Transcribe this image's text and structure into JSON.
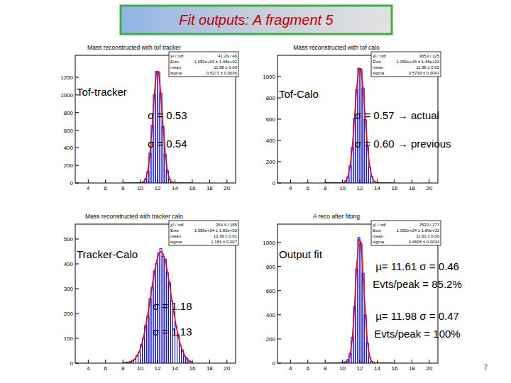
{
  "slide": {
    "title": "Fit outputs: A fragment 5",
    "page": "7"
  },
  "chart_data": [
    {
      "type": "histogram",
      "title": "Mass reconstructed with tof tracker",
      "grid": false,
      "xlim": [
        2.5,
        21
      ],
      "xticks": [
        4,
        6,
        8,
        10,
        12,
        14,
        16,
        18,
        20
      ],
      "ylim": [
        0,
        1450
      ],
      "yticks": [
        0,
        200,
        400,
        600,
        800,
        1000,
        1200
      ],
      "bins": [
        8,
        8.25,
        8.5,
        8.75,
        9,
        9.25,
        9.5,
        9.75,
        10,
        10.25,
        10.5,
        10.75,
        11,
        11.25,
        11.5,
        11.75,
        12,
        12.25,
        12.5,
        12.75,
        13,
        13.25,
        13.5,
        13.75,
        14,
        14.25,
        14.5,
        14.75,
        15,
        15.25,
        15.5,
        15.75,
        16
      ],
      "series": [
        {
          "type": "histogram",
          "color": "#0000ff",
          "values": [
            0,
            0,
            0,
            0,
            0,
            1,
            1,
            3,
            4,
            14,
            48,
            130,
            340,
            655,
            1002,
            1270,
            1258,
            1020,
            641,
            328,
            142,
            41,
            13,
            3,
            1,
            0,
            0,
            0,
            0,
            0,
            0,
            0
          ]
        },
        {
          "type": "line",
          "color": "#ff0000",
          "x": [
            8.125,
            8.375,
            8.625,
            8.875,
            9.125,
            9.375,
            9.625,
            9.875,
            10.125,
            10.375,
            10.625,
            10.875,
            11.125,
            11.375,
            11.625,
            11.875,
            12.125,
            12.375,
            12.625,
            12.875,
            13.125,
            13.375,
            13.625,
            13.875,
            14.125,
            14.375,
            14.625,
            14.875,
            15.125,
            15.375,
            15.625,
            15.875
          ],
          "values": [
            0,
            0,
            0,
            0,
            0,
            0,
            0,
            0,
            2,
            12,
            45,
            137,
            333,
            649,
            1011,
            1265,
            1265,
            1011,
            649,
            333,
            137,
            45,
            12,
            2,
            0,
            0,
            0,
            0,
            0,
            0,
            0,
            0
          ]
        }
      ],
      "stats": [
        [
          "χ² / ndf",
          "41.29 / 49"
        ],
        [
          "Evts",
          "1.052e+04 ± 1.48e+02"
        ],
        [
          "mean",
          "11.98 ± 0.00"
        ],
        [
          "sigma",
          "0.5271 ± 0.0036"
        ]
      ],
      "annotations": [
        "Tof-tracker",
        "σ = 0.53",
        "σ = 0.54"
      ]
    },
    {
      "type": "histogram",
      "title": "Mass reconstructed with tof calo",
      "grid": false,
      "xlim": [
        2.5,
        21
      ],
      "xticks": [
        4,
        6,
        8,
        10,
        12,
        14,
        16,
        18,
        20
      ],
      "ylim": [
        0,
        1200
      ],
      "yticks": [
        0,
        200,
        400,
        600,
        800,
        1000
      ],
      "bins": [
        8,
        8.25,
        8.5,
        8.75,
        9,
        9.25,
        9.5,
        9.75,
        10,
        10.25,
        10.5,
        10.75,
        11,
        11.25,
        11.5,
        11.75,
        12,
        12.25,
        12.5,
        12.75,
        13,
        13.25,
        13.5,
        13.75,
        14,
        14.25,
        14.5,
        14.75,
        15,
        15.25,
        15.5,
        15.75,
        16
      ],
      "series": [
        {
          "type": "histogram",
          "color": "#0000ff",
          "values": [
            3,
            4,
            2,
            3,
            2,
            3,
            2,
            3,
            7,
            21,
            57,
            162,
            335,
            610,
            880,
            1080,
            1068,
            893,
            597,
            344,
            151,
            63,
            17,
            6,
            2,
            1,
            1,
            0,
            1,
            0,
            0,
            0
          ]
        },
        {
          "type": "line",
          "color": "#ff0000",
          "x": [
            8.125,
            8.375,
            8.625,
            8.875,
            9.125,
            9.375,
            9.625,
            9.875,
            10.125,
            10.375,
            10.625,
            10.875,
            11.125,
            11.375,
            11.625,
            11.875,
            12.125,
            12.375,
            12.625,
            12.875,
            13.125,
            13.375,
            13.625,
            13.875,
            14.125,
            14.375,
            14.625,
            14.875,
            15.125,
            15.375,
            15.625,
            15.875
          ],
          "values": [
            0,
            0,
            0,
            0,
            0,
            0,
            0,
            1,
            5,
            19,
            60,
            157,
            339,
            603,
            886,
            1074,
            1074,
            886,
            603,
            339,
            157,
            60,
            19,
            5,
            1,
            0,
            0,
            0,
            0,
            0,
            0,
            0
          ]
        }
      ],
      "stats": [
        [
          "χ² / ndf",
          "9653 / 125"
        ],
        [
          "Evts",
          "1.052e+04 ± 1.45e+02"
        ],
        [
          "mean",
          "11.98 ± 0.02"
        ],
        [
          "sigma",
          "0.5739 ± 0.0041"
        ]
      ],
      "annotations": [
        "Tof-Calo",
        "σ = 0.57 → actual",
        "σ = 0.60 → previous"
      ]
    },
    {
      "type": "histogram",
      "title": "Mass reconstructed with tracker calo",
      "grid": false,
      "xlim": [
        2.5,
        21
      ],
      "xticks": [
        4,
        6,
        8,
        10,
        12,
        14,
        16,
        18,
        20
      ],
      "ylim": [
        0,
        560
      ],
      "yticks": [
        0,
        100,
        200,
        300,
        400,
        500
      ],
      "bins": [
        8,
        8.25,
        8.5,
        8.75,
        9,
        9.25,
        9.5,
        9.75,
        10,
        10.25,
        10.5,
        10.75,
        11,
        11.25,
        11.5,
        11.75,
        12,
        12.25,
        12.5,
        12.75,
        13,
        13.25,
        13.5,
        13.75,
        14,
        14.25,
        14.5,
        14.75,
        15,
        15.25,
        15.5,
        15.75,
        16
      ],
      "series": [
        {
          "type": "histogram",
          "color": "#0000ff",
          "values": [
            2,
            3,
            4,
            7,
            12,
            15,
            32,
            43,
            75,
            101,
            152,
            190,
            260,
            305,
            372,
            402,
            445,
            462,
            430,
            420,
            365,
            325,
            251,
            210,
            148,
            112,
            70,
            52,
            28,
            20,
            9,
            7
          ]
        },
        {
          "type": "line",
          "color": "#ff0000",
          "x": [
            8.125,
            8.375,
            8.625,
            8.875,
            9.125,
            9.375,
            9.625,
            9.875,
            10.125,
            10.375,
            10.625,
            10.875,
            11.125,
            11.375,
            11.625,
            11.875,
            12.125,
            12.375,
            12.625,
            12.875,
            13.125,
            13.375,
            13.625,
            13.875,
            14.125,
            14.375,
            14.625,
            14.875,
            15.125,
            15.375,
            15.625,
            15.875
          ],
          "values": [
            1,
            1,
            3,
            5,
            10,
            17,
            29,
            46,
            71,
            105,
            147,
            197,
            253,
            311,
            365,
            409,
            439,
            450,
            441,
            414,
            371,
            318,
            260,
            204,
            153,
            109,
            75,
            49,
            31,
            18,
            10,
            6
          ]
        }
      ],
      "stats": [
        [
          "χ² / ndf",
          "354.4 / 185"
        ],
        [
          "Evts",
          "1.056e+04 ± 1.80e+02"
        ],
        [
          "mean",
          "12.39 ± 0.01"
        ],
        [
          "sigma",
          "1.181 ± 0.007"
        ]
      ],
      "annotations": [
        "Tracker-Calo",
        "σ = 1.18",
        "σ = 1.13"
      ]
    },
    {
      "type": "histogram",
      "title": "A reco after fitting",
      "grid": false,
      "xlim": [
        2.5,
        21
      ],
      "xticks": [
        4,
        6,
        8,
        10,
        12,
        14,
        16,
        18,
        20
      ],
      "ylim": [
        0,
        1150
      ],
      "yticks": [
        0,
        200,
        400,
        600,
        800,
        1000
      ],
      "bins": [
        8,
        8.25,
        8.5,
        8.75,
        9,
        9.25,
        9.5,
        9.75,
        10,
        10.25,
        10.5,
        10.75,
        11,
        11.25,
        11.5,
        11.75,
        12,
        12.25,
        12.5,
        12.75,
        13,
        13.25,
        13.5,
        13.75,
        14,
        14.25,
        14.5,
        14.75,
        15,
        15.25,
        15.5,
        15.75,
        16
      ],
      "series": [
        {
          "type": "histogram",
          "color": "#0000ff",
          "values": [
            0,
            0,
            0,
            1,
            0,
            2,
            3,
            5,
            8,
            12,
            30,
            82,
            215,
            470,
            780,
            1040,
            990,
            745,
            400,
            165,
            50,
            15,
            4,
            1,
            0,
            1,
            0,
            0,
            0,
            0,
            0,
            0
          ]
        },
        {
          "type": "line",
          "color": "#ff0000",
          "x": [
            8.125,
            8.375,
            8.625,
            8.875,
            9.125,
            9.375,
            9.625,
            9.875,
            10.125,
            10.375,
            10.625,
            10.875,
            11.125,
            11.375,
            11.625,
            11.875,
            12.125,
            12.375,
            12.625,
            12.875,
            13.125,
            13.375,
            13.625,
            13.875,
            14.125,
            14.375,
            14.625,
            14.875,
            15.125,
            15.375,
            15.625,
            15.875
          ],
          "values": [
            0,
            0,
            0,
            0,
            0,
            0,
            0,
            0,
            0,
            3,
            16,
            66,
            201,
            459,
            790,
            1024,
            1001,
            738,
            410,
            171,
            54,
            13,
            2,
            0,
            0,
            0,
            0,
            0,
            0,
            0,
            0,
            0
          ]
        }
      ],
      "stats": [
        [
          "χ² / ndf",
          "2533 / 177"
        ],
        [
          "Evts",
          "1.050e+04 ± 1.80e+02"
        ],
        [
          "mean",
          "11.61 ± 0.00"
        ],
        [
          "sigma",
          "0.4608 ± 0.0034"
        ]
      ],
      "annotations": [
        "Output fit",
        "µ= 11.61  σ = 0.46",
        "Evts/peak = 85.2%",
        "µ= 11.98  σ = 0.47",
        "Evts/peak = 100%"
      ]
    }
  ]
}
